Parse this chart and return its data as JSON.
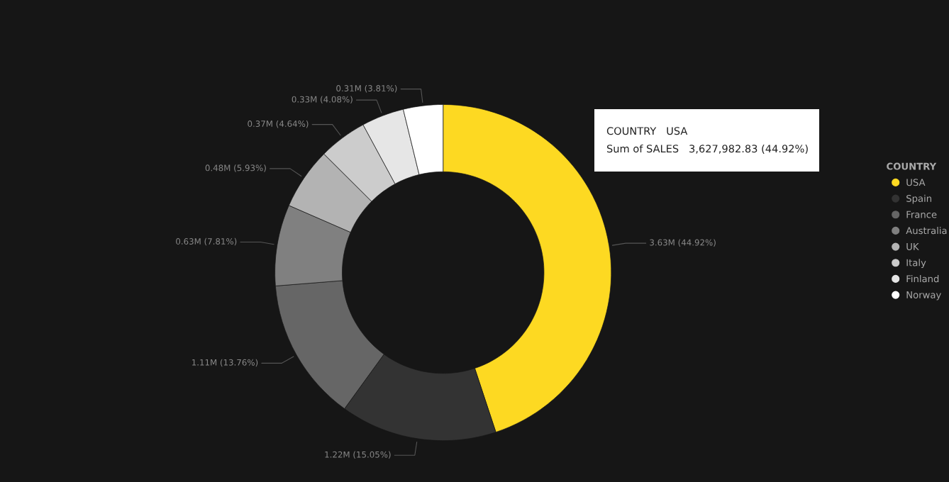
{
  "chart_data": {
    "type": "donut",
    "categories": [
      "USA",
      "Spain",
      "France",
      "Australia",
      "UK",
      "Italy",
      "Finland",
      "Norway"
    ],
    "values": [
      44.92,
      15.05,
      13.76,
      7.81,
      5.93,
      4.64,
      4.08,
      3.81
    ],
    "value_labels": [
      "3.63M (44.92%)",
      "1.22M (15.05%)",
      "1.11M (13.76%)",
      "0.63M (7.81%)",
      "0.48M (5.93%)",
      "0.37M (4.64%)",
      "0.33M (4.08%)",
      "0.31M (3.81%)"
    ],
    "colors": [
      "#fdd922",
      "#333333",
      "#666666",
      "#808080",
      "#b3b3b3",
      "#cccccc",
      "#e6e6e6",
      "#ffffff"
    ],
    "legend_title": "COUNTRY",
    "legend": "right",
    "annotations": [
      "COUNTRY   USA",
      "Sum of SALES   3,627,982.83 (44.92%)"
    ]
  }
}
